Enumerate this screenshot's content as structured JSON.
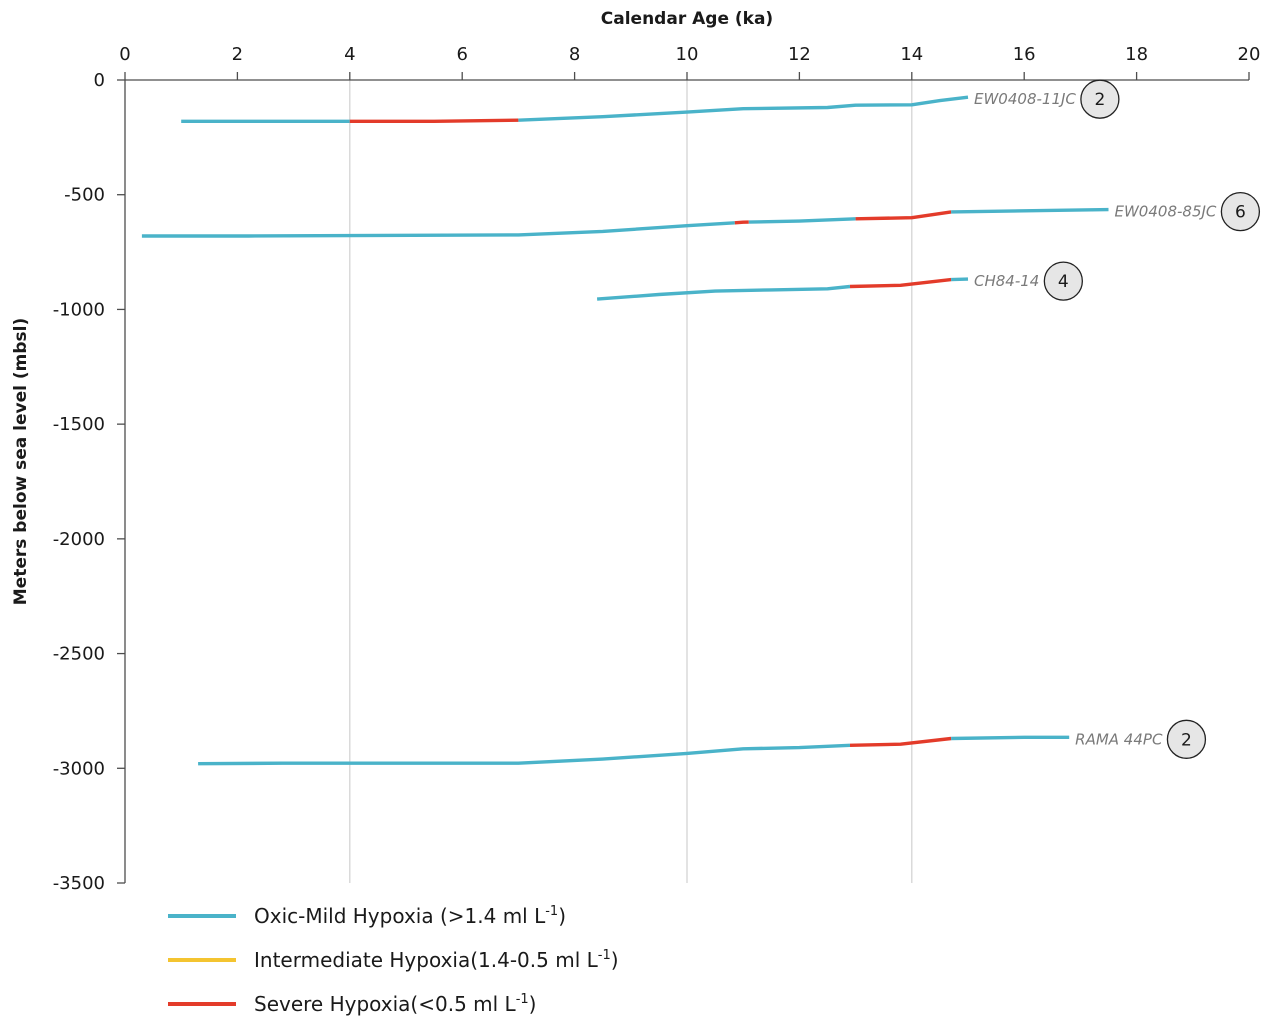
{
  "chart_data": {
    "type": "line",
    "title": "",
    "xlabel": "Calendar Age (ka)",
    "ylabel": "Meters below sea level (mbsl)",
    "xlim": [
      0,
      20
    ],
    "ylim": [
      -3500,
      0
    ],
    "x_ticks": [
      "0",
      "2",
      "4",
      "6",
      "8",
      "10",
      "12",
      "14",
      "16",
      "18",
      "20"
    ],
    "y_ticks": [
      "0",
      "-500",
      "-1000",
      "-1500",
      "-2000",
      "-2500",
      "-3000",
      "-3500"
    ],
    "vertical_gridlines_at": [
      4,
      10,
      14
    ],
    "x_axis_position": "top",
    "legend_position": "bottom-left",
    "colors": {
      "oxic": "#4ab3c9",
      "intermediate": "#f4c430",
      "severe": "#e33b2a"
    },
    "legend": [
      {
        "key": "oxic",
        "text": "Oxic-Mild Hypoxia (>1.4 ml L",
        "sup": "-1",
        "close": ")"
      },
      {
        "key": "intermediate",
        "text": "Intermediate Hypoxia(1.4-0.5 ml L",
        "sup": "-1",
        "close": ")"
      },
      {
        "key": "severe",
        "text": "Severe Hypoxia(<0.5 ml L",
        "sup": "-1",
        "close": ")"
      }
    ],
    "series": [
      {
        "name": "EW0408-11JC",
        "badge": "2",
        "points": [
          [
            1.0,
            -180
          ],
          [
            4.0,
            -180
          ],
          [
            5.5,
            -180
          ],
          [
            7.0,
            -175
          ],
          [
            8.5,
            -160
          ],
          [
            10.0,
            -140
          ],
          [
            11.0,
            -125
          ],
          [
            12.5,
            -120
          ],
          [
            13.0,
            -110
          ],
          [
            14.0,
            -108
          ],
          [
            14.5,
            -90
          ],
          [
            15.0,
            -75
          ]
        ],
        "segments": [
          {
            "from": 1.0,
            "to": 4.0,
            "condition": "oxic"
          },
          {
            "from": 4.0,
            "to": 7.0,
            "condition": "severe"
          },
          {
            "from": 7.0,
            "to": 15.0,
            "condition": "oxic"
          }
        ]
      },
      {
        "name": "EW0408-85JC",
        "badge": "6",
        "points": [
          [
            0.3,
            -680
          ],
          [
            2.2,
            -680
          ],
          [
            7.0,
            -675
          ],
          [
            8.5,
            -660
          ],
          [
            10.0,
            -635
          ],
          [
            11.0,
            -620
          ],
          [
            12.0,
            -615
          ],
          [
            13.0,
            -605
          ],
          [
            14.0,
            -600
          ],
          [
            14.7,
            -575
          ],
          [
            16.0,
            -570
          ],
          [
            17.5,
            -565
          ]
        ],
        "segments": [
          {
            "from": 0.3,
            "to": 10.85,
            "condition": "oxic"
          },
          {
            "from": 10.85,
            "to": 11.1,
            "condition": "severe"
          },
          {
            "from": 11.1,
            "to": 13.0,
            "condition": "oxic"
          },
          {
            "from": 13.0,
            "to": 14.7,
            "condition": "severe"
          },
          {
            "from": 14.7,
            "to": 17.5,
            "condition": "oxic"
          }
        ]
      },
      {
        "name": "CH84-14",
        "badge": "4",
        "points": [
          [
            8.4,
            -955
          ],
          [
            9.5,
            -935
          ],
          [
            10.5,
            -920
          ],
          [
            11.5,
            -915
          ],
          [
            12.5,
            -910
          ],
          [
            12.9,
            -900
          ],
          [
            13.8,
            -895
          ],
          [
            14.7,
            -870
          ],
          [
            15.0,
            -868
          ]
        ],
        "segments": [
          {
            "from": 8.4,
            "to": 12.9,
            "condition": "oxic"
          },
          {
            "from": 12.9,
            "to": 14.7,
            "condition": "severe"
          },
          {
            "from": 14.7,
            "to": 15.0,
            "condition": "oxic"
          }
        ]
      },
      {
        "name": "RAMA 44PC",
        "badge": "2",
        "points": [
          [
            1.3,
            -2980
          ],
          [
            2.8,
            -2978
          ],
          [
            7.0,
            -2978
          ],
          [
            8.5,
            -2960
          ],
          [
            10.0,
            -2935
          ],
          [
            11.0,
            -2915
          ],
          [
            12.0,
            -2910
          ],
          [
            12.9,
            -2900
          ],
          [
            13.8,
            -2895
          ],
          [
            14.7,
            -2870
          ],
          [
            16.0,
            -2865
          ],
          [
            16.8,
            -2865
          ]
        ],
        "segments": [
          {
            "from": 1.3,
            "to": 12.9,
            "condition": "oxic"
          },
          {
            "from": 12.9,
            "to": 14.7,
            "condition": "severe"
          },
          {
            "from": 14.7,
            "to": 16.8,
            "condition": "oxic"
          }
        ]
      }
    ]
  }
}
